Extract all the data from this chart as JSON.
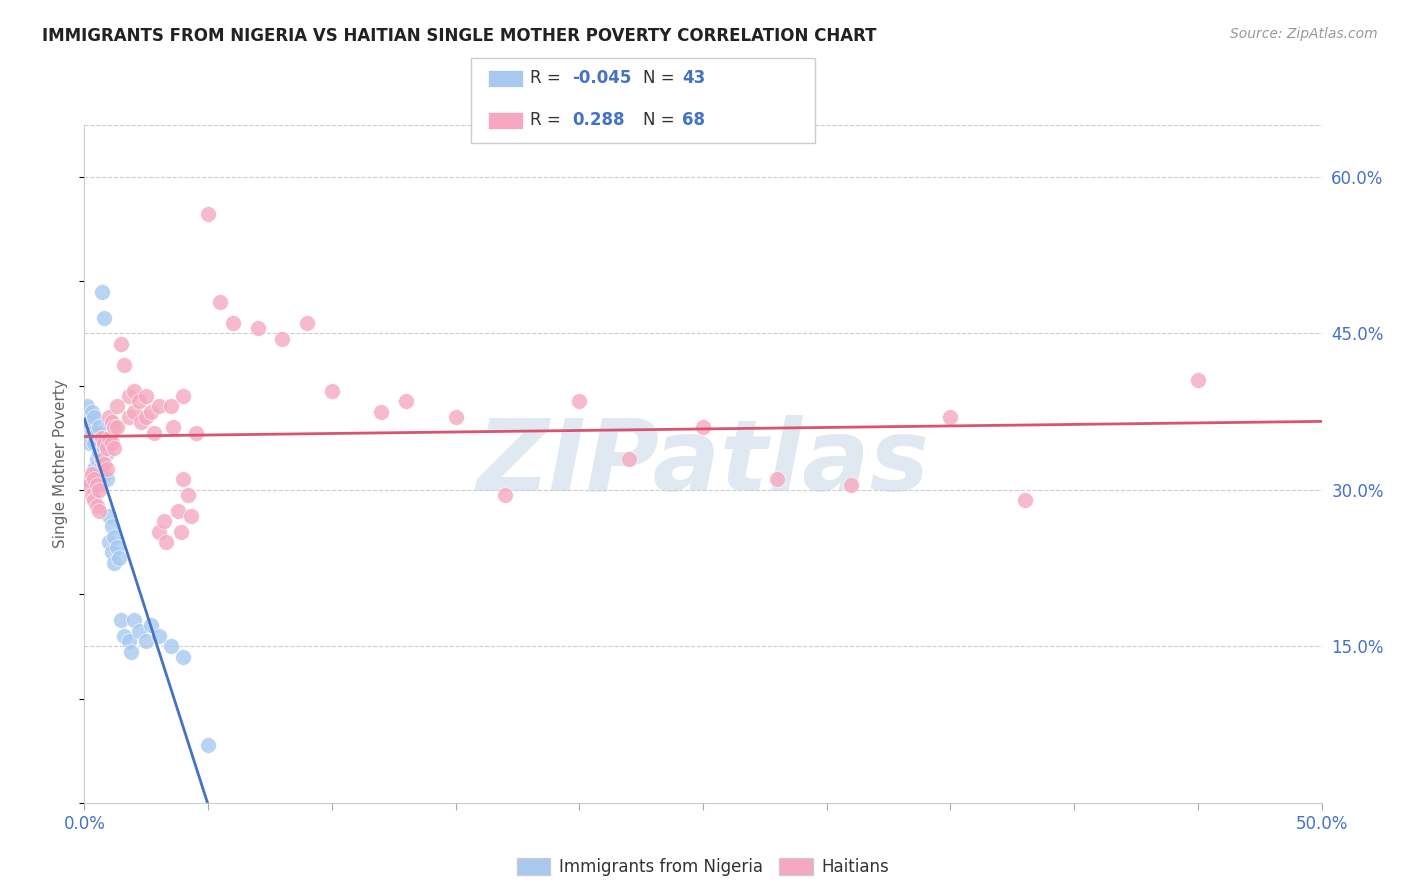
{
  "title": "IMMIGRANTS FROM NIGERIA VS HAITIAN SINGLE MOTHER POVERTY CORRELATION CHART",
  "source": "Source: ZipAtlas.com",
  "ylabel": "Single Mother Poverty",
  "ytick_vals": [
    0.15,
    0.3,
    0.45,
    0.6
  ],
  "ytick_labels": [
    "15.0%",
    "30.0%",
    "45.0%",
    "60.0%"
  ],
  "xlim": [
    0.0,
    0.5
  ],
  "ylim": [
    0.0,
    0.65
  ],
  "legend_r_nigeria": "-0.045",
  "legend_n_nigeria": "43",
  "legend_r_haitian": "0.288",
  "legend_n_haitian": "68",
  "legend_label_nigeria": "Immigrants from Nigeria",
  "legend_label_haitian": "Haitians",
  "nigeria_color": "#a8c8f0",
  "haitian_color": "#f5a8c0",
  "nigeria_line_color": "#4472c4",
  "haitian_line_color": "#d9546e",
  "background_color": "#ffffff",
  "nigeria_points": [
    [
      0.001,
      0.38
    ],
    [
      0.002,
      0.365
    ],
    [
      0.002,
      0.345
    ],
    [
      0.003,
      0.375
    ],
    [
      0.003,
      0.355
    ],
    [
      0.003,
      0.31
    ],
    [
      0.004,
      0.37
    ],
    [
      0.004,
      0.345
    ],
    [
      0.004,
      0.32
    ],
    [
      0.005,
      0.355
    ],
    [
      0.005,
      0.33
    ],
    [
      0.005,
      0.305
    ],
    [
      0.006,
      0.36
    ],
    [
      0.006,
      0.335
    ],
    [
      0.006,
      0.31
    ],
    [
      0.007,
      0.35
    ],
    [
      0.007,
      0.325
    ],
    [
      0.007,
      0.49
    ],
    [
      0.008,
      0.34
    ],
    [
      0.008,
      0.315
    ],
    [
      0.008,
      0.465
    ],
    [
      0.009,
      0.335
    ],
    [
      0.009,
      0.31
    ],
    [
      0.01,
      0.275
    ],
    [
      0.01,
      0.25
    ],
    [
      0.011,
      0.265
    ],
    [
      0.011,
      0.24
    ],
    [
      0.012,
      0.255
    ],
    [
      0.012,
      0.23
    ],
    [
      0.013,
      0.245
    ],
    [
      0.014,
      0.235
    ],
    [
      0.015,
      0.175
    ],
    [
      0.016,
      0.16
    ],
    [
      0.018,
      0.155
    ],
    [
      0.019,
      0.145
    ],
    [
      0.02,
      0.175
    ],
    [
      0.022,
      0.165
    ],
    [
      0.025,
      0.155
    ],
    [
      0.027,
      0.17
    ],
    [
      0.03,
      0.16
    ],
    [
      0.035,
      0.15
    ],
    [
      0.04,
      0.14
    ],
    [
      0.05,
      0.055
    ]
  ],
  "haitian_points": [
    [
      0.001,
      0.31
    ],
    [
      0.002,
      0.305
    ],
    [
      0.003,
      0.315
    ],
    [
      0.003,
      0.295
    ],
    [
      0.004,
      0.31
    ],
    [
      0.004,
      0.29
    ],
    [
      0.005,
      0.305
    ],
    [
      0.005,
      0.285
    ],
    [
      0.006,
      0.3
    ],
    [
      0.006,
      0.28
    ],
    [
      0.007,
      0.35
    ],
    [
      0.007,
      0.33
    ],
    [
      0.008,
      0.345
    ],
    [
      0.008,
      0.325
    ],
    [
      0.009,
      0.34
    ],
    [
      0.009,
      0.32
    ],
    [
      0.01,
      0.37
    ],
    [
      0.01,
      0.35
    ],
    [
      0.011,
      0.365
    ],
    [
      0.011,
      0.345
    ],
    [
      0.012,
      0.36
    ],
    [
      0.012,
      0.34
    ],
    [
      0.013,
      0.38
    ],
    [
      0.013,
      0.36
    ],
    [
      0.015,
      0.44
    ],
    [
      0.016,
      0.42
    ],
    [
      0.018,
      0.39
    ],
    [
      0.018,
      0.37
    ],
    [
      0.02,
      0.395
    ],
    [
      0.02,
      0.375
    ],
    [
      0.022,
      0.385
    ],
    [
      0.023,
      0.365
    ],
    [
      0.025,
      0.39
    ],
    [
      0.025,
      0.37
    ],
    [
      0.027,
      0.375
    ],
    [
      0.028,
      0.355
    ],
    [
      0.03,
      0.38
    ],
    [
      0.03,
      0.26
    ],
    [
      0.032,
      0.27
    ],
    [
      0.033,
      0.25
    ],
    [
      0.035,
      0.38
    ],
    [
      0.036,
      0.36
    ],
    [
      0.038,
      0.28
    ],
    [
      0.039,
      0.26
    ],
    [
      0.04,
      0.39
    ],
    [
      0.04,
      0.31
    ],
    [
      0.042,
      0.295
    ],
    [
      0.043,
      0.275
    ],
    [
      0.045,
      0.355
    ],
    [
      0.05,
      0.565
    ],
    [
      0.055,
      0.48
    ],
    [
      0.06,
      0.46
    ],
    [
      0.07,
      0.455
    ],
    [
      0.08,
      0.445
    ],
    [
      0.09,
      0.46
    ],
    [
      0.1,
      0.395
    ],
    [
      0.12,
      0.375
    ],
    [
      0.13,
      0.385
    ],
    [
      0.15,
      0.37
    ],
    [
      0.17,
      0.295
    ],
    [
      0.2,
      0.385
    ],
    [
      0.22,
      0.33
    ],
    [
      0.25,
      0.36
    ],
    [
      0.28,
      0.31
    ],
    [
      0.31,
      0.305
    ],
    [
      0.35,
      0.37
    ],
    [
      0.38,
      0.29
    ],
    [
      0.45,
      0.405
    ]
  ]
}
